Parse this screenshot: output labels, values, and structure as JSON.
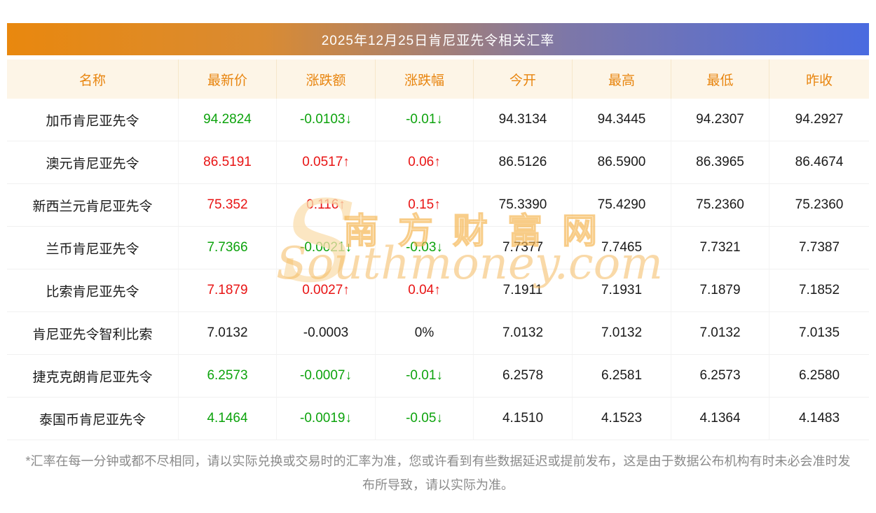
{
  "title": "2025年12月25日肯尼亚先令相关汇率",
  "watermark": {
    "logo": "S",
    "cn": "南方财富网",
    "en": "Southmoney.com"
  },
  "footnote": "*汇率在每一分钟或都不尽相同，请以实际兑换或交易时的汇率为准，您或许看到有些数据延迟或提前发布，这是由于数据公布机构有时未必会准时发布所导致，请以实际为准。",
  "colors": {
    "up": "#e81414",
    "down": "#0da30d",
    "header_text": "#e8850f",
    "header_bg": "#fdf5e7"
  },
  "chart_data": {
    "type": "table",
    "title": "2025年12月25日肯尼亚先令相关汇率",
    "columns": [
      "名称",
      "最新价",
      "涨跌额",
      "涨跌幅",
      "今开",
      "最高",
      "最低",
      "昨收"
    ],
    "rows": [
      {
        "name": "加币肯尼亚先令",
        "latest": "94.2824",
        "change": "-0.0103↓",
        "pct": "-0.01↓",
        "open": "94.3134",
        "high": "94.3445",
        "low": "94.2307",
        "prev": "94.2927",
        "trend": "down"
      },
      {
        "name": "澳元肯尼亚先令",
        "latest": "86.5191",
        "change": "0.0517↑",
        "pct": "0.06↑",
        "open": "86.5126",
        "high": "86.5900",
        "low": "86.3965",
        "prev": "86.4674",
        "trend": "up"
      },
      {
        "name": "新西兰元肯尼亚先令",
        "latest": "75.352",
        "change": "0.116↑",
        "pct": "0.15↑",
        "open": "75.3390",
        "high": "75.4290",
        "low": "75.2360",
        "prev": "75.2360",
        "trend": "up"
      },
      {
        "name": "兰币肯尼亚先令",
        "latest": "7.7366",
        "change": "-0.0021↓",
        "pct": "-0.03↓",
        "open": "7.7377",
        "high": "7.7465",
        "low": "7.7321",
        "prev": "7.7387",
        "trend": "down"
      },
      {
        "name": "比索肯尼亚先令",
        "latest": "7.1879",
        "change": "0.0027↑",
        "pct": "0.04↑",
        "open": "7.1911",
        "high": "7.1931",
        "low": "7.1879",
        "prev": "7.1852",
        "trend": "up"
      },
      {
        "name": "肯尼亚先令智利比索",
        "latest": "7.0132",
        "change": "-0.0003",
        "pct": "0%",
        "open": "7.0132",
        "high": "7.0132",
        "low": "7.0132",
        "prev": "7.0135",
        "trend": "flat"
      },
      {
        "name": "捷克克朗肯尼亚先令",
        "latest": "6.2573",
        "change": "-0.0007↓",
        "pct": "-0.01↓",
        "open": "6.2578",
        "high": "6.2581",
        "low": "6.2573",
        "prev": "6.2580",
        "trend": "down"
      },
      {
        "name": "泰国币肯尼亚先令",
        "latest": "4.1464",
        "change": "-0.0019↓",
        "pct": "-0.05↓",
        "open": "4.1510",
        "high": "4.1523",
        "low": "4.1364",
        "prev": "4.1483",
        "trend": "down"
      }
    ]
  }
}
